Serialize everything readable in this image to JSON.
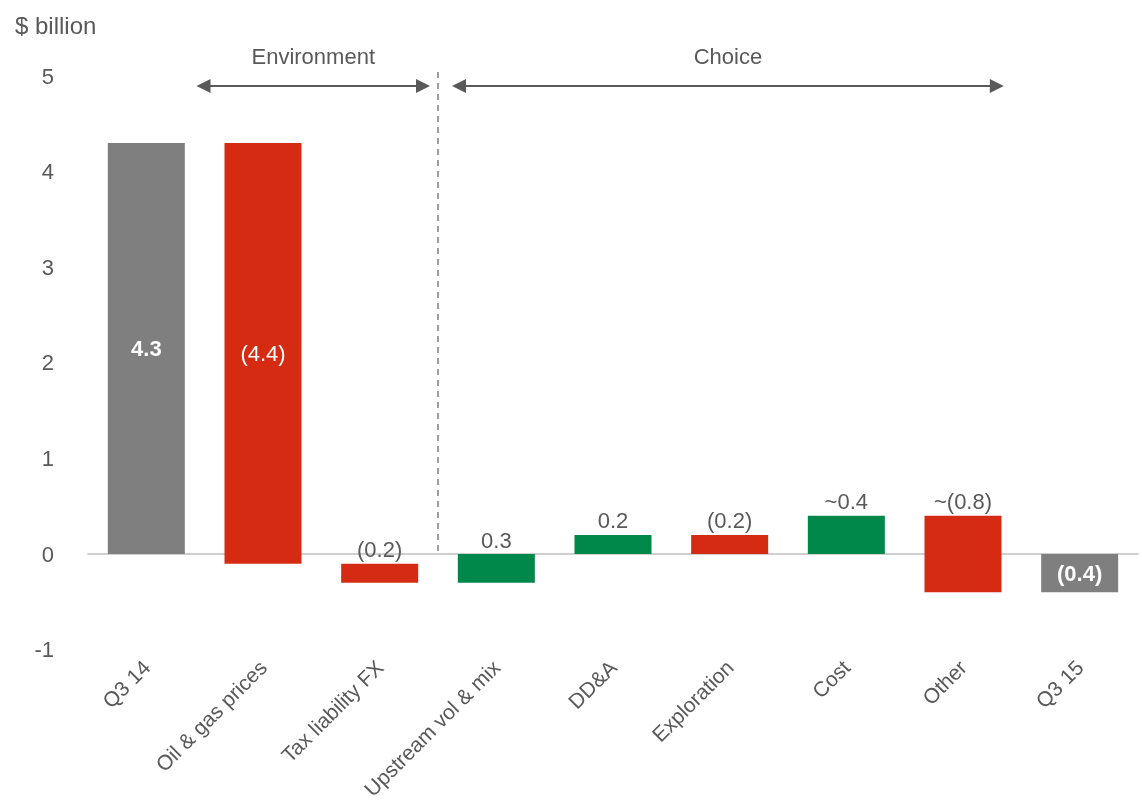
{
  "chart_data": {
    "type": "bar",
    "ylabel": "$ billion",
    "categories": [
      "Q3 14",
      "Oil & gas prices",
      "Tax liability FX",
      "Upstream vol & mix",
      "DD&A",
      "Exploration",
      "Cost",
      "Other",
      "Q3 15"
    ],
    "values": [
      4.3,
      -4.4,
      -0.2,
      0.3,
      0.2,
      -0.2,
      0.4,
      -0.8,
      -0.4
    ],
    "base": [
      0,
      4.3,
      -0.1,
      -0.3,
      0,
      0.2,
      0,
      0.4,
      0
    ],
    "colors": [
      "#7f7f7f",
      "#d52b12",
      "#d52b12",
      "#00874a",
      "#00874a",
      "#d52b12",
      "#00874a",
      "#d52b12",
      "#7f7f7f"
    ],
    "value_labels": [
      "4.3",
      "(4.4)",
      "(0.2)",
      "0.3",
      "0.2",
      "(0.2)",
      "~0.4",
      "~(0.8)",
      "(0.4)"
    ],
    "ylim": [
      -1,
      5
    ],
    "yticks": [
      -1,
      0,
      1,
      2,
      3,
      4,
      5
    ],
    "annotations": [
      "Environment",
      "Choice"
    ]
  }
}
